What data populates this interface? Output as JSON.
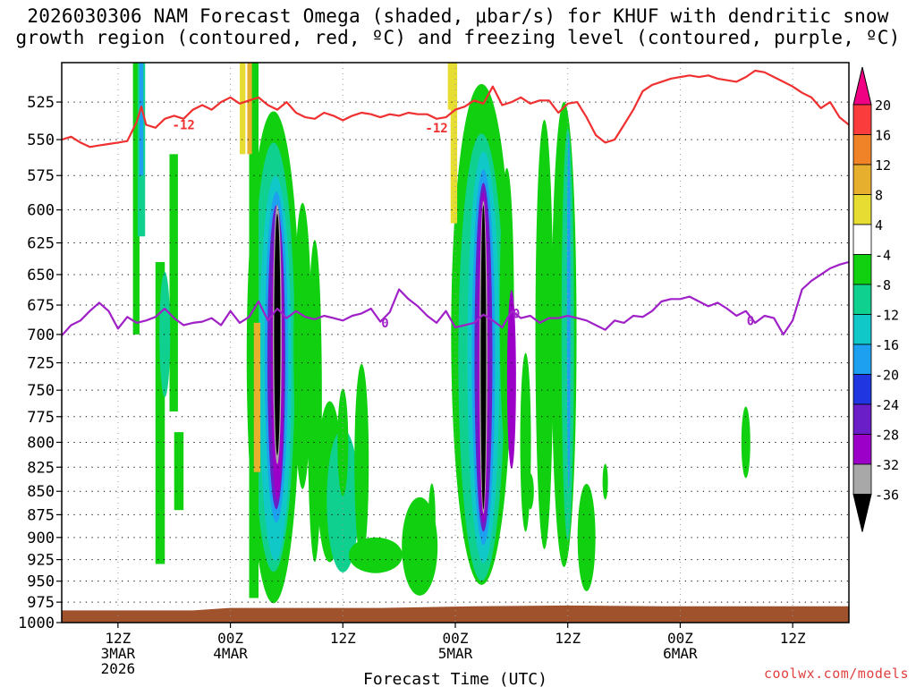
{
  "title_line1": "2026030306 NAM Forecast Omega (shaded, μbar/s) for KHUF with dendritic snow",
  "title_line2": "growth region (contoured, red, ºC) and freezing level (contoured, purple, ºC)",
  "footer": "coolwx.com/models",
  "chart_data": {
    "type": "heatmap",
    "title": "2026030306 NAM Forecast Omega (shaded, μbar/s) for KHUF with dendritic snow growth region (contoured, red, ºC) and freezing level (contoured, purple, ºC)",
    "xlabel": "Forecast Time (UTC)",
    "ylabel": "",
    "x_ticks": [
      {
        "hour": 12,
        "labels": [
          "12Z",
          "3MAR",
          "2026"
        ]
      },
      {
        "hour": 24,
        "labels": [
          "00Z",
          "4MAR"
        ]
      },
      {
        "hour": 36,
        "labels": [
          "12Z"
        ]
      },
      {
        "hour": 48,
        "labels": [
          "00Z",
          "5MAR"
        ]
      },
      {
        "hour": 60,
        "labels": [
          "12Z"
        ]
      },
      {
        "hour": 72,
        "labels": [
          "00Z",
          "6MAR"
        ]
      },
      {
        "hour": 84,
        "labels": [
          "12Z"
        ]
      }
    ],
    "xlim_hours": [
      6,
      90
    ],
    "y_ticks": [
      525,
      550,
      575,
      600,
      625,
      650,
      675,
      700,
      725,
      750,
      775,
      800,
      825,
      850,
      875,
      900,
      925,
      950,
      975,
      1000
    ],
    "ylim": [
      500,
      1000
    ],
    "y_scale": "log",
    "grid": true,
    "colorbar": {
      "labels": [
        "20",
        "16",
        "12",
        "8",
        "4",
        "-4",
        "-8",
        "-12",
        "-16",
        "-20",
        "-24",
        "-28",
        "-32",
        "-36"
      ],
      "levels": [
        -36,
        -32,
        -28,
        -24,
        -20,
        -16,
        -12,
        -8,
        -4,
        4,
        8,
        12,
        16,
        20
      ],
      "colors": [
        "#000000",
        "#a8a8a8",
        "#9c00c8",
        "#6a1ec8",
        "#2036e0",
        "#1ea0f0",
        "#10c8c8",
        "#10d090",
        "#10d010",
        "#ffffff",
        "#e6dc32",
        "#e6af2d",
        "#f08228",
        "#fa3c3c",
        "#f00082"
      ]
    },
    "contour_labels": [
      {
        "text": "-12",
        "hour": 19,
        "p": 540,
        "color": "#f03030"
      },
      {
        "text": "-12",
        "hour": 46,
        "p": 542,
        "color": "#f03030"
      },
      {
        "text": "0",
        "hour": 40.5,
        "p": 690,
        "color": "#a020c8"
      },
      {
        "text": "0",
        "hour": 54.5,
        "p": 682,
        "color": "#a020c8"
      },
      {
        "text": "0",
        "hour": 79.5,
        "p": 688,
        "color": "#a020c8"
      }
    ],
    "series": [
      {
        "name": "-12",
        "color": "#f03030",
        "x": [
          6,
          7,
          8,
          9,
          10,
          11,
          12,
          13,
          14,
          14.5,
          15,
          16,
          17,
          18,
          19,
          20,
          21,
          22,
          23,
          24,
          25,
          26,
          27,
          28,
          29,
          30,
          31,
          32,
          33,
          34,
          35,
          36,
          37,
          38,
          39,
          40,
          41,
          42,
          43,
          44,
          45,
          46,
          47,
          48,
          49,
          50,
          51,
          52,
          53,
          54,
          55,
          56,
          57,
          58,
          59,
          60,
          61,
          62,
          63,
          64,
          65,
          66,
          67,
          68,
          69,
          70,
          71,
          72,
          73,
          74,
          75,
          76,
          77,
          78,
          79,
          80,
          81,
          82,
          83,
          84,
          85,
          86,
          87,
          88,
          89,
          90
        ],
        "y": [
          550,
          548,
          552,
          555,
          554,
          553,
          552,
          551,
          538,
          528,
          540,
          542,
          536,
          534,
          536,
          530,
          527,
          530,
          525,
          522,
          526,
          524,
          522,
          527,
          530,
          525,
          532,
          535,
          536,
          532,
          534,
          537,
          534,
          532,
          533,
          535,
          533,
          534,
          532,
          533,
          533,
          536,
          535,
          530,
          528,
          524,
          526,
          515,
          527,
          525,
          522,
          526,
          524,
          524,
          532,
          526,
          525,
          535,
          547,
          552,
          550,
          540,
          530,
          518,
          514,
          512,
          510,
          509,
          508,
          509,
          508,
          510,
          511,
          512,
          509,
          505,
          506,
          509,
          512,
          515,
          519,
          522,
          529,
          525,
          535,
          540
        ]
      },
      {
        "name": "0",
        "color": "#a020c8",
        "x": [
          6,
          7,
          8,
          9,
          10,
          11,
          12,
          13,
          14,
          15,
          16,
          17,
          18,
          19,
          20,
          21,
          22,
          23,
          24,
          25,
          26,
          27,
          28,
          29,
          30,
          31,
          32,
          33,
          34,
          35,
          36,
          37,
          38,
          39,
          40,
          41,
          42,
          43,
          44,
          45,
          46,
          47,
          48,
          49,
          50,
          51,
          52,
          53,
          54,
          55,
          56,
          57,
          58,
          59,
          60,
          61,
          62,
          63,
          64,
          65,
          66,
          67,
          68,
          69,
          70,
          71,
          72,
          73,
          74,
          75,
          76,
          77,
          78,
          79,
          80,
          81,
          82,
          83,
          84,
          85,
          86,
          87,
          88,
          89,
          90
        ],
        "y": [
          701,
          692,
          688,
          680,
          673,
          680,
          695,
          685,
          690,
          688,
          685,
          678,
          686,
          692,
          690,
          689,
          686,
          692,
          680,
          690,
          685,
          672,
          688,
          678,
          686,
          680,
          685,
          687,
          684,
          686,
          688,
          684,
          682,
          678,
          689,
          681,
          662,
          670,
          676,
          684,
          690,
          680,
          694,
          692,
          690,
          683,
          688,
          694,
          680,
          686,
          684,
          690,
          686,
          686,
          684,
          686,
          688,
          692,
          696,
          688,
          690,
          684,
          685,
          680,
          672,
          670,
          670,
          668,
          672,
          676,
          673,
          678,
          684,
          680,
          690,
          684,
          686,
          700,
          688,
          662,
          655,
          650,
          645,
          642,
          640
        ]
      }
    ]
  }
}
